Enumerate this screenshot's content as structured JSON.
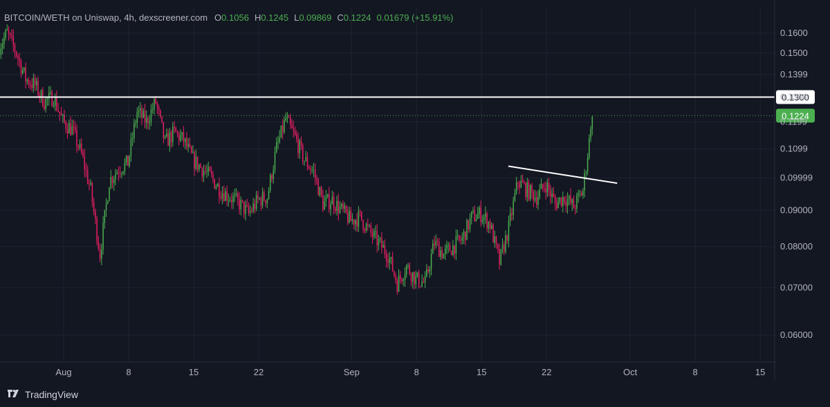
{
  "legend": {
    "symbol": "BITCOIN/WETH on Uniswap, 4h, dexscreener.com",
    "open_key": "O",
    "open": "0.1056",
    "high_key": "H",
    "high": "0.1245",
    "low_key": "L",
    "low": "0.09869",
    "close_key": "C",
    "close": "0.1224",
    "change": "0.01679 (+15.91%)"
  },
  "brand": {
    "name": "TradingView"
  },
  "colors": {
    "background": "#131722",
    "up": "#4caf50",
    "down": "#e91e63",
    "grid": "#1f2330",
    "axis_text": "#b2b5be",
    "price_line": "#4caf50"
  },
  "chart_data": {
    "type": "candlestick",
    "interval": "4h",
    "y_axis": {
      "position": "right",
      "scale": "log",
      "ticks": [
        "0.1600",
        "0.1500",
        "0.1399",
        "0.1300",
        "0.1199",
        "0.1099",
        "0.09999",
        "0.09000",
        "0.08000",
        "0.07000",
        "0.06000"
      ],
      "tick_values": [
        0.16,
        0.15,
        0.1399,
        0.13,
        0.1199,
        0.1099,
        0.09999,
        0.09,
        0.08,
        0.07,
        0.06
      ]
    },
    "x_axis": {
      "ticks": [
        {
          "label": "Aug",
          "date": "2024-08-01"
        },
        {
          "label": "8",
          "date": "2024-08-08"
        },
        {
          "label": "15",
          "date": "2024-08-15"
        },
        {
          "label": "22",
          "date": "2024-08-22"
        },
        {
          "label": "Sep",
          "date": "2024-09-01"
        },
        {
          "label": "8",
          "date": "2024-09-08"
        },
        {
          "label": "15",
          "date": "2024-09-15"
        },
        {
          "label": "22",
          "date": "2024-09-22"
        },
        {
          "label": "Oct",
          "date": "2024-10-01"
        },
        {
          "label": "8",
          "date": "2024-10-08"
        },
        {
          "label": "15",
          "date": "2024-10-15"
        }
      ]
    },
    "horizontal_line": {
      "value": 0.13,
      "label": "0.1300",
      "color": "#ffffff"
    },
    "current_price": {
      "value": 0.1224,
      "label": "0.1224",
      "color": "#4caf50"
    },
    "trendline": {
      "from": {
        "date": "2024-09-19",
        "value": 0.0985
      },
      "to": {
        "date": "2024-09-29",
        "value": 0.1002
      },
      "color": "#ffffff"
    },
    "close_path": [
      [
        "2024-07-25",
        0.152
      ],
      [
        "2024-07-26",
        0.16
      ],
      [
        "2024-07-27",
        0.15
      ],
      [
        "2024-07-28",
        0.138
      ],
      [
        "2024-07-29",
        0.135
      ],
      [
        "2024-07-30",
        0.128
      ],
      [
        "2024-07-31",
        0.13
      ],
      [
        "2024-08-01",
        0.12
      ],
      [
        "2024-08-02",
        0.117
      ],
      [
        "2024-08-03",
        0.108
      ],
      [
        "2024-08-04",
        0.096
      ],
      [
        "2024-08-05",
        0.078
      ],
      [
        "2024-08-06",
        0.099
      ],
      [
        "2024-08-07",
        0.103
      ],
      [
        "2024-08-08",
        0.105
      ],
      [
        "2024-08-09",
        0.124
      ],
      [
        "2024-08-10",
        0.12
      ],
      [
        "2024-08-11",
        0.128
      ],
      [
        "2024-08-12",
        0.112
      ],
      [
        "2024-08-13",
        0.116
      ],
      [
        "2024-08-14",
        0.113
      ],
      [
        "2024-08-15",
        0.106
      ],
      [
        "2024-08-16",
        0.103
      ],
      [
        "2024-08-17",
        0.1
      ],
      [
        "2024-08-18",
        0.096
      ],
      [
        "2024-08-19",
        0.094
      ],
      [
        "2024-08-20",
        0.092
      ],
      [
        "2024-08-21",
        0.089
      ],
      [
        "2024-08-22",
        0.093
      ],
      [
        "2024-08-23",
        0.094
      ],
      [
        "2024-08-24",
        0.11
      ],
      [
        "2024-08-25",
        0.121
      ],
      [
        "2024-08-26",
        0.114
      ],
      [
        "2024-08-27",
        0.106
      ],
      [
        "2024-08-28",
        0.102
      ],
      [
        "2024-08-29",
        0.092
      ],
      [
        "2024-08-30",
        0.093
      ],
      [
        "2024-08-31",
        0.09
      ],
      [
        "2024-09-01",
        0.087
      ],
      [
        "2024-09-02",
        0.088
      ],
      [
        "2024-09-03",
        0.084
      ],
      [
        "2024-09-04",
        0.081
      ],
      [
        "2024-09-05",
        0.078
      ],
      [
        "2024-09-06",
        0.071
      ],
      [
        "2024-09-07",
        0.075
      ],
      [
        "2024-09-08",
        0.072
      ],
      [
        "2024-09-09",
        0.071
      ],
      [
        "2024-09-10",
        0.081
      ],
      [
        "2024-09-11",
        0.078
      ],
      [
        "2024-09-12",
        0.08
      ],
      [
        "2024-09-13",
        0.082
      ],
      [
        "2024-09-14",
        0.088
      ],
      [
        "2024-09-15",
        0.089
      ],
      [
        "2024-09-16",
        0.086
      ],
      [
        "2024-09-17",
        0.076
      ],
      [
        "2024-09-18",
        0.085
      ],
      [
        "2024-09-19",
        0.099
      ],
      [
        "2024-09-20",
        0.096
      ],
      [
        "2024-09-21",
        0.094
      ],
      [
        "2024-09-22",
        0.098
      ],
      [
        "2024-09-23",
        0.092
      ],
      [
        "2024-09-24",
        0.094
      ],
      [
        "2024-09-25",
        0.091
      ],
      [
        "2024-09-26",
        0.096
      ],
      [
        "2024-09-27",
        0.122
      ]
    ]
  }
}
